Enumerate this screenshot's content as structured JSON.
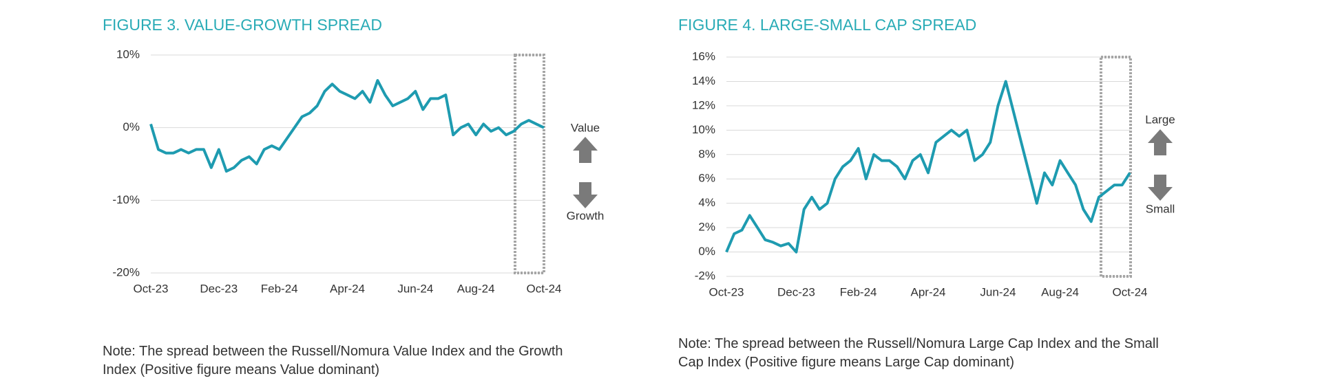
{
  "chart_data": [
    {
      "type": "line",
      "title": "FIGURE 3. VALUE-GROWTH SPREAD",
      "note": "Note: The spread between the Russell/Nomura Value Index and the Growth Index (Positive figure means Value dominant)",
      "annotations": [
        "Value",
        "Growth"
      ],
      "categories": [
        "Oct-23",
        null,
        null,
        null,
        null,
        null,
        null,
        null,
        null,
        "Dec-23",
        null,
        null,
        null,
        null,
        null,
        null,
        null,
        "Feb-24",
        null,
        null,
        null,
        null,
        null,
        null,
        null,
        null,
        "Apr-24",
        null,
        null,
        null,
        null,
        null,
        null,
        null,
        null,
        "Jun-24",
        null,
        null,
        null,
        null,
        null,
        null,
        null,
        "Aug-24",
        null,
        null,
        null,
        null,
        null,
        null,
        null,
        null,
        "Oct-24"
      ],
      "values": [
        0.5,
        -3,
        -3.5,
        -3.5,
        -3,
        -3.5,
        -3,
        -3,
        -5.5,
        -3,
        -6,
        -5.5,
        -4.5,
        -4,
        -5,
        -3,
        -2.5,
        -3,
        -1.5,
        0,
        1.5,
        2,
        3,
        5,
        6,
        5,
        4.5,
        4,
        5,
        3.5,
        6.5,
        4.5,
        3,
        3.5,
        4,
        5,
        2.5,
        4,
        4,
        4.5,
        -1,
        0,
        0.5,
        -1,
        0.5,
        -0.5,
        0,
        -1,
        -0.5,
        0.5,
        1,
        0.5,
        0
      ],
      "color": "#1e9bb0",
      "ylim": [
        -20,
        10
      ],
      "yticks": [
        {
          "value": -20,
          "label": "-20%"
        },
        {
          "value": -10,
          "label": "-10%"
        },
        {
          "value": 0,
          "label": "0%"
        },
        {
          "value": 10,
          "label": "10%"
        }
      ],
      "grid": true
    },
    {
      "type": "line",
      "title": "FIGURE 4. LARGE-SMALL CAP SPREAD",
      "note": "Note: The spread between the Russell/Nomura Large Cap Index and the Small Cap Index (Positive figure means Large Cap dominant)",
      "annotations": [
        "Large",
        "Small"
      ],
      "categories": [
        "Oct-23",
        null,
        null,
        null,
        null,
        null,
        null,
        null,
        null,
        "Dec-23",
        null,
        null,
        null,
        null,
        null,
        null,
        null,
        "Feb-24",
        null,
        null,
        null,
        null,
        null,
        null,
        null,
        null,
        "Apr-24",
        null,
        null,
        null,
        null,
        null,
        null,
        null,
        null,
        "Jun-24",
        null,
        null,
        null,
        null,
        null,
        null,
        null,
        "Aug-24",
        null,
        null,
        null,
        null,
        null,
        null,
        null,
        null,
        "Oct-24"
      ],
      "values": [
        0,
        1.5,
        1.8,
        3,
        2,
        1,
        0.8,
        0.5,
        0.7,
        0,
        3.5,
        4.5,
        3.5,
        4,
        6,
        7,
        7.5,
        8.5,
        6,
        8,
        7.5,
        7.5,
        7,
        6,
        7.5,
        8,
        6.5,
        9,
        9.5,
        10,
        9.5,
        10,
        7.5,
        8,
        9,
        12,
        14,
        11.5,
        9,
        6.5,
        4,
        6.5,
        5.5,
        7.5,
        6.5,
        5.5,
        3.5,
        2.5,
        4.5,
        5,
        5.5,
        5.5,
        6.5
      ],
      "color": "#1e9bb0",
      "ylim": [
        -2,
        16
      ],
      "yticks": [
        {
          "value": -2,
          "label": "-2%"
        },
        {
          "value": 0,
          "label": "0%"
        },
        {
          "value": 2,
          "label": "2%"
        },
        {
          "value": 4,
          "label": "4%"
        },
        {
          "value": 6,
          "label": "6%"
        },
        {
          "value": 8,
          "label": "8%"
        },
        {
          "value": 10,
          "label": "10%"
        },
        {
          "value": 12,
          "label": "12%"
        },
        {
          "value": 14,
          "label": "14%"
        },
        {
          "value": 16,
          "label": "16%"
        }
      ],
      "grid": true
    }
  ]
}
